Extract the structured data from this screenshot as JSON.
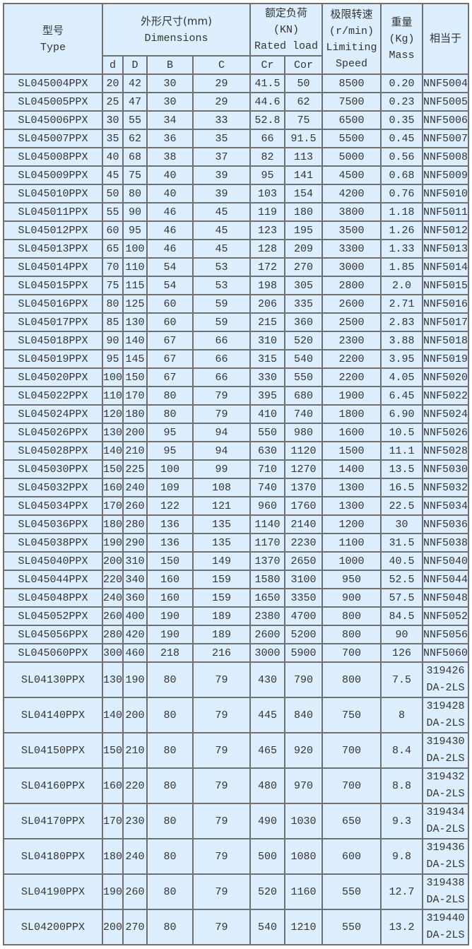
{
  "header": {
    "type_cn": "型号",
    "type_en": "Type",
    "dim_cn": "外形尺寸(mm)",
    "dim_en": "Dimensions",
    "load_cn": "额定负荷",
    "load_unit": "(KN)",
    "load_en": "Rated load",
    "speed_cn": "极限转速",
    "speed_unit": "(r/min)",
    "speed_en1": "Limiting",
    "speed_en2": "Speed",
    "mass_cn": "重量",
    "mass_unit": "(Kg)",
    "mass_en": "Mass",
    "equiv_cn": "相当于",
    "sub": [
      "d",
      "D",
      "B",
      "C",
      "Cr",
      "Cor"
    ]
  },
  "rows": [
    [
      "SL045004PPX",
      "20",
      "42",
      "30",
      "29",
      "41.5",
      "50",
      "8500",
      "0.20",
      "NNF5004"
    ],
    [
      "SL045005PPX",
      "25",
      "47",
      "30",
      "29",
      "44.6",
      "62",
      "7500",
      "0.23",
      "NNF5005"
    ],
    [
      "SL045006PPX",
      "30",
      "55",
      "34",
      "33",
      "52.8",
      "75",
      "6500",
      "0.35",
      "NNF5006"
    ],
    [
      "SL045007PPX",
      "35",
      "62",
      "36",
      "35",
      "66",
      "91.5",
      "5500",
      "0.45",
      "NNF5007"
    ],
    [
      "SL045008PPX",
      "40",
      "68",
      "38",
      "37",
      "82",
      "113",
      "5000",
      "0.56",
      "NNF5008"
    ],
    [
      "SL045009PPX",
      "45",
      "75",
      "40",
      "39",
      "95",
      "141",
      "4500",
      "0.68",
      "NNF5009"
    ],
    [
      "SL045010PPX",
      "50",
      "80",
      "40",
      "39",
      "103",
      "154",
      "4200",
      "0.76",
      "NNF5010"
    ],
    [
      "SL045011PPX",
      "55",
      "90",
      "46",
      "45",
      "119",
      "180",
      "3800",
      "1.18",
      "NNF5011"
    ],
    [
      "SL045012PPX",
      "60",
      "95",
      "46",
      "45",
      "123",
      "195",
      "3500",
      "1.26",
      "NNF5012"
    ],
    [
      "SL045013PPX",
      "65",
      "100",
      "46",
      "45",
      "128",
      "209",
      "3300",
      "1.33",
      "NNF5013"
    ],
    [
      "SL045014PPX",
      "70",
      "110",
      "54",
      "53",
      "172",
      "270",
      "3000",
      "1.85",
      "NNF5014"
    ],
    [
      "SL045015PPX",
      "75",
      "115",
      "54",
      "53",
      "198",
      "305",
      "2800",
      "2.0",
      "NNF5015"
    ],
    [
      "SL045016PPX",
      "80",
      "125",
      "60",
      "59",
      "206",
      "335",
      "2600",
      "2.71",
      "NNF5016"
    ],
    [
      "SL045017PPX",
      "85",
      "130",
      "60",
      "59",
      "215",
      "360",
      "2500",
      "2.83",
      "NNF5017"
    ],
    [
      "SL045018PPX",
      "90",
      "140",
      "67",
      "66",
      "310",
      "520",
      "2300",
      "3.88",
      "NNF5018"
    ],
    [
      "SL045019PPX",
      "95",
      "145",
      "67",
      "66",
      "315",
      "540",
      "2200",
      "3.95",
      "NNF5019"
    ],
    [
      "SL045020PPX",
      "100",
      "150",
      "67",
      "66",
      "330",
      "550",
      "2200",
      "4.05",
      "NNF5020"
    ],
    [
      "SL045022PPX",
      "110",
      "170",
      "80",
      "79",
      "395",
      "680",
      "1900",
      "6.45",
      "NNF5022"
    ],
    [
      "SL045024PPX",
      "120",
      "180",
      "80",
      "79",
      "410",
      "740",
      "1800",
      "6.90",
      "NNF5024"
    ],
    [
      "SL045026PPX",
      "130",
      "200",
      "95",
      "94",
      "550",
      "980",
      "1600",
      "10.5",
      "NNF5026"
    ],
    [
      "SL045028PPX",
      "140",
      "210",
      "95",
      "94",
      "630",
      "1120",
      "1500",
      "11.1",
      "NNF5028"
    ],
    [
      "SL045030PPX",
      "150",
      "225",
      "100",
      "99",
      "710",
      "1270",
      "1400",
      "13.5",
      "NNF5030"
    ],
    [
      "SL045032PPX",
      "160",
      "240",
      "109",
      "108",
      "740",
      "1370",
      "1300",
      "16.5",
      "NNF5032"
    ],
    [
      "SL045034PPX",
      "170",
      "260",
      "122",
      "121",
      "960",
      "1760",
      "1300",
      "22.5",
      "NNF5034"
    ],
    [
      "SL045036PPX",
      "180",
      "280",
      "136",
      "135",
      "1140",
      "2140",
      "1200",
      "30",
      "NNF5036"
    ],
    [
      "SL045038PPX",
      "190",
      "290",
      "136",
      "135",
      "1170",
      "2230",
      "1100",
      "31.5",
      "NNF5038"
    ],
    [
      "SL045040PPX",
      "200",
      "310",
      "150",
      "149",
      "1370",
      "2650",
      "1000",
      "40.5",
      "NNF5040"
    ],
    [
      "SL045044PPX",
      "220",
      "340",
      "160",
      "159",
      "1580",
      "3100",
      "950",
      "52.5",
      "NNF5044"
    ],
    [
      "SL045048PPX",
      "240",
      "360",
      "160",
      "159",
      "1650",
      "3350",
      "900",
      "57.5",
      "NNF5048"
    ],
    [
      "SL045052PPX",
      "260",
      "400",
      "190",
      "189",
      "2380",
      "4700",
      "800",
      "84.5",
      "NNF5052"
    ],
    [
      "SL045056PPX",
      "280",
      "420",
      "190",
      "189",
      "2600",
      "5200",
      "800",
      "90",
      "NNF5056"
    ],
    [
      "SL045060PPX",
      "300",
      "460",
      "218",
      "216",
      "3000",
      "5900",
      "700",
      "126",
      "NNF5060"
    ]
  ],
  "tall_rows": [
    [
      "SL04130PPX",
      "130",
      "190",
      "80",
      "79",
      "430",
      "790",
      "800",
      "7.5",
      "319426",
      "DA-2LS"
    ],
    [
      "SL04140PPX",
      "140",
      "200",
      "80",
      "79",
      "445",
      "840",
      "750",
      "8",
      "319428",
      "DA-2LS"
    ],
    [
      "SL04150PPX",
      "150",
      "210",
      "80",
      "79",
      "465",
      "920",
      "700",
      "8.4",
      "319430",
      "DA-2LS"
    ],
    [
      "SL04160PPX",
      "160",
      "220",
      "80",
      "79",
      "480",
      "970",
      "700",
      "8.8",
      "319432",
      "DA-2LS"
    ],
    [
      "SL04170PPX",
      "170",
      "230",
      "80",
      "79",
      "490",
      "1030",
      "650",
      "9.3",
      "319434",
      "DA-2LS"
    ],
    [
      "SL04180PPX",
      "180",
      "240",
      "80",
      "79",
      "500",
      "1080",
      "600",
      "9.8",
      "319436",
      "DA-2LS"
    ],
    [
      "SL04190PPX",
      "190",
      "260",
      "80",
      "79",
      "520",
      "1160",
      "550",
      "12.7",
      "319438",
      "DA-2LS"
    ],
    [
      "SL04200PPX",
      "200",
      "270",
      "80",
      "79",
      "540",
      "1210",
      "550",
      "13.2",
      "319440",
      "DA-2LS"
    ]
  ]
}
